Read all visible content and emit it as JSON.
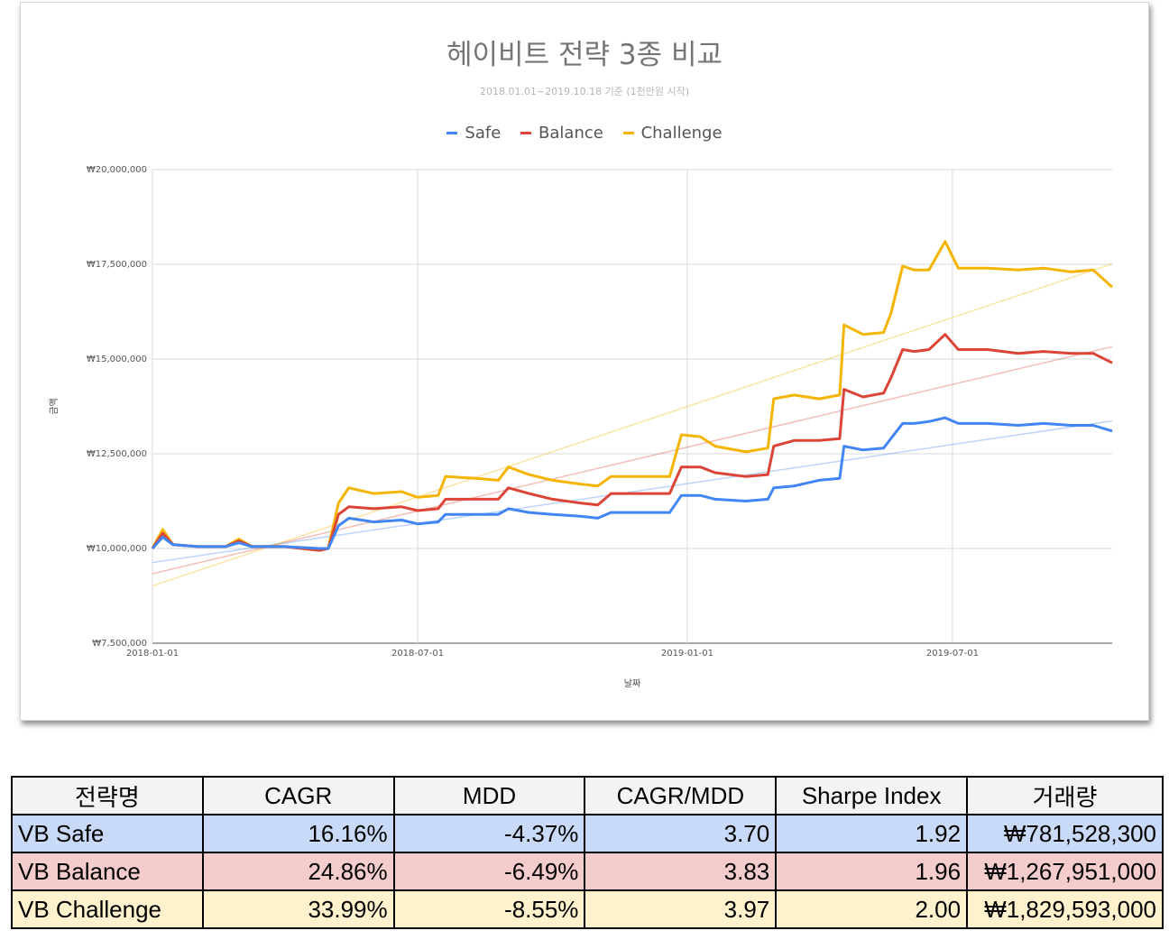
{
  "chart": {
    "title": "헤이비트 전략 3종 비교",
    "subtitle": "2018.01.01~2019.10.18 기준 (1천만원 시작)"
  },
  "colors": {
    "safe": "#4285f4",
    "balance": "#db4437",
    "challenge": "#f4b400"
  },
  "chart_data": {
    "type": "line",
    "title": "헤이비트 전략 3종 비교",
    "subtitle": "2018.01.01~2019.10.18 기준 (1천만원 시작)",
    "xlabel": "날짜",
    "ylabel": "금액",
    "x_range": [
      "2018-01-01",
      "2019-10-18"
    ],
    "ylim": [
      7500000,
      20000000
    ],
    "y_ticks": [
      7500000,
      10000000,
      12500000,
      15000000,
      17500000,
      20000000
    ],
    "y_tick_labels": [
      "₩7,500,000",
      "₩10,000,000",
      "₩12,500,000",
      "₩15,000,000",
      "₩17,500,000",
      "₩20,000,000"
    ],
    "x_ticks": [
      "2018-01-01",
      "2018-07-01",
      "2019-01-01",
      "2019-07-01"
    ],
    "x_tick_labels": [
      "2018-01-01",
      "2018-07-01",
      "2019-01-01",
      "2019-07-01"
    ],
    "grid": true,
    "legend": "top",
    "trendlines": true,
    "series": [
      {
        "name": "Safe",
        "color": "#4285f4",
        "points": [
          [
            "2018-01-01",
            10000000
          ],
          [
            "2018-01-08",
            10300000
          ],
          [
            "2018-01-15",
            10100000
          ],
          [
            "2018-02-01",
            10050000
          ],
          [
            "2018-02-20",
            10050000
          ],
          [
            "2018-03-01",
            10150000
          ],
          [
            "2018-03-10",
            10050000
          ],
          [
            "2018-04-01",
            10050000
          ],
          [
            "2018-04-25",
            10000000
          ],
          [
            "2018-05-01",
            10000000
          ],
          [
            "2018-05-08",
            10600000
          ],
          [
            "2018-05-15",
            10800000
          ],
          [
            "2018-06-01",
            10700000
          ],
          [
            "2018-06-20",
            10750000
          ],
          [
            "2018-07-01",
            10650000
          ],
          [
            "2018-07-15",
            10700000
          ],
          [
            "2018-07-20",
            10900000
          ],
          [
            "2018-08-10",
            10900000
          ],
          [
            "2018-08-25",
            10900000
          ],
          [
            "2018-09-01",
            11050000
          ],
          [
            "2018-09-15",
            10950000
          ],
          [
            "2018-10-01",
            10900000
          ],
          [
            "2018-10-20",
            10850000
          ],
          [
            "2018-11-01",
            10800000
          ],
          [
            "2018-11-10",
            10950000
          ],
          [
            "2018-12-01",
            10950000
          ],
          [
            "2018-12-20",
            10950000
          ],
          [
            "2018-12-28",
            11400000
          ],
          [
            "2019-01-10",
            11400000
          ],
          [
            "2019-01-20",
            11300000
          ],
          [
            "2019-02-10",
            11250000
          ],
          [
            "2019-02-25",
            11300000
          ],
          [
            "2019-03-01",
            11600000
          ],
          [
            "2019-03-15",
            11650000
          ],
          [
            "2019-04-01",
            11800000
          ],
          [
            "2019-04-15",
            11850000
          ],
          [
            "2019-04-18",
            12700000
          ],
          [
            "2019-05-01",
            12600000
          ],
          [
            "2019-05-15",
            12650000
          ],
          [
            "2019-05-20",
            12900000
          ],
          [
            "2019-05-28",
            13300000
          ],
          [
            "2019-06-05",
            13300000
          ],
          [
            "2019-06-15",
            13350000
          ],
          [
            "2019-06-26",
            13450000
          ],
          [
            "2019-07-05",
            13300000
          ],
          [
            "2019-07-25",
            13300000
          ],
          [
            "2019-08-15",
            13250000
          ],
          [
            "2019-09-01",
            13300000
          ],
          [
            "2019-09-20",
            13250000
          ],
          [
            "2019-10-05",
            13250000
          ],
          [
            "2019-10-18",
            13100000
          ]
        ]
      },
      {
        "name": "Balance",
        "color": "#db4437",
        "points": [
          [
            "2018-01-01",
            10000000
          ],
          [
            "2018-01-08",
            10400000
          ],
          [
            "2018-01-15",
            10100000
          ],
          [
            "2018-02-01",
            10050000
          ],
          [
            "2018-02-20",
            10050000
          ],
          [
            "2018-03-01",
            10200000
          ],
          [
            "2018-03-10",
            10050000
          ],
          [
            "2018-04-01",
            10050000
          ],
          [
            "2018-04-25",
            9950000
          ],
          [
            "2018-05-01",
            10000000
          ],
          [
            "2018-05-08",
            10900000
          ],
          [
            "2018-05-15",
            11100000
          ],
          [
            "2018-06-01",
            11050000
          ],
          [
            "2018-06-20",
            11100000
          ],
          [
            "2018-07-01",
            11000000
          ],
          [
            "2018-07-15",
            11050000
          ],
          [
            "2018-07-20",
            11300000
          ],
          [
            "2018-08-10",
            11300000
          ],
          [
            "2018-08-25",
            11300000
          ],
          [
            "2018-09-01",
            11600000
          ],
          [
            "2018-09-15",
            11450000
          ],
          [
            "2018-10-01",
            11300000
          ],
          [
            "2018-10-20",
            11200000
          ],
          [
            "2018-11-01",
            11150000
          ],
          [
            "2018-11-10",
            11450000
          ],
          [
            "2018-12-01",
            11450000
          ],
          [
            "2018-12-20",
            11450000
          ],
          [
            "2018-12-28",
            12150000
          ],
          [
            "2019-01-10",
            12150000
          ],
          [
            "2019-01-20",
            12000000
          ],
          [
            "2019-02-10",
            11900000
          ],
          [
            "2019-02-25",
            11950000
          ],
          [
            "2019-03-01",
            12700000
          ],
          [
            "2019-03-15",
            12850000
          ],
          [
            "2019-04-01",
            12850000
          ],
          [
            "2019-04-15",
            12900000
          ],
          [
            "2019-04-18",
            14200000
          ],
          [
            "2019-05-01",
            14000000
          ],
          [
            "2019-05-15",
            14100000
          ],
          [
            "2019-05-20",
            14500000
          ],
          [
            "2019-05-28",
            15250000
          ],
          [
            "2019-06-05",
            15200000
          ],
          [
            "2019-06-15",
            15250000
          ],
          [
            "2019-06-26",
            15650000
          ],
          [
            "2019-07-05",
            15250000
          ],
          [
            "2019-07-25",
            15250000
          ],
          [
            "2019-08-15",
            15150000
          ],
          [
            "2019-09-01",
            15200000
          ],
          [
            "2019-09-20",
            15150000
          ],
          [
            "2019-10-05",
            15150000
          ],
          [
            "2019-10-18",
            14900000
          ]
        ]
      },
      {
        "name": "Challenge",
        "color": "#f4b400",
        "points": [
          [
            "2018-01-01",
            10000000
          ],
          [
            "2018-01-08",
            10500000
          ],
          [
            "2018-01-15",
            10100000
          ],
          [
            "2018-02-01",
            10050000
          ],
          [
            "2018-02-20",
            10050000
          ],
          [
            "2018-03-01",
            10250000
          ],
          [
            "2018-03-10",
            10050000
          ],
          [
            "2018-04-01",
            10050000
          ],
          [
            "2018-04-25",
            9950000
          ],
          [
            "2018-05-01",
            10000000
          ],
          [
            "2018-05-08",
            11200000
          ],
          [
            "2018-05-15",
            11600000
          ],
          [
            "2018-06-01",
            11450000
          ],
          [
            "2018-06-20",
            11500000
          ],
          [
            "2018-07-01",
            11350000
          ],
          [
            "2018-07-15",
            11400000
          ],
          [
            "2018-07-20",
            11900000
          ],
          [
            "2018-08-10",
            11850000
          ],
          [
            "2018-08-25",
            11800000
          ],
          [
            "2018-09-01",
            12150000
          ],
          [
            "2018-09-15",
            11950000
          ],
          [
            "2018-10-01",
            11800000
          ],
          [
            "2018-10-20",
            11700000
          ],
          [
            "2018-11-01",
            11650000
          ],
          [
            "2018-11-10",
            11900000
          ],
          [
            "2018-12-01",
            11900000
          ],
          [
            "2018-12-20",
            11900000
          ],
          [
            "2018-12-28",
            13000000
          ],
          [
            "2019-01-10",
            12950000
          ],
          [
            "2019-01-20",
            12700000
          ],
          [
            "2019-02-10",
            12550000
          ],
          [
            "2019-02-25",
            12650000
          ],
          [
            "2019-03-01",
            13950000
          ],
          [
            "2019-03-15",
            14050000
          ],
          [
            "2019-04-01",
            13950000
          ],
          [
            "2019-04-15",
            14050000
          ],
          [
            "2019-04-18",
            15900000
          ],
          [
            "2019-05-01",
            15650000
          ],
          [
            "2019-05-15",
            15700000
          ],
          [
            "2019-05-20",
            16200000
          ],
          [
            "2019-05-28",
            17450000
          ],
          [
            "2019-06-05",
            17350000
          ],
          [
            "2019-06-15",
            17350000
          ],
          [
            "2019-06-26",
            18100000
          ],
          [
            "2019-07-05",
            17400000
          ],
          [
            "2019-07-25",
            17400000
          ],
          [
            "2019-08-15",
            17350000
          ],
          [
            "2019-09-01",
            17400000
          ],
          [
            "2019-09-20",
            17300000
          ],
          [
            "2019-10-05",
            17350000
          ],
          [
            "2019-10-18",
            16900000
          ]
        ]
      }
    ]
  },
  "table": {
    "headers": [
      "전략명",
      "CAGR",
      "MDD",
      "CAGR/MDD",
      "Sharpe Index",
      "거래량"
    ],
    "rows": [
      {
        "bg": "#c9daf8",
        "cells": [
          "VB Safe",
          "16.16%",
          "-4.37%",
          "3.70",
          "1.92",
          "₩781,528,300"
        ]
      },
      {
        "bg": "#f4cccc",
        "cells": [
          "VB Balance",
          "24.86%",
          "-6.49%",
          "3.83",
          "1.96",
          "₩1,267,951,000"
        ]
      },
      {
        "bg": "#fff2cc",
        "cells": [
          "VB Challenge",
          "33.99%",
          "-8.55%",
          "3.97",
          "2.00",
          "₩1,829,593,000"
        ]
      }
    ]
  }
}
